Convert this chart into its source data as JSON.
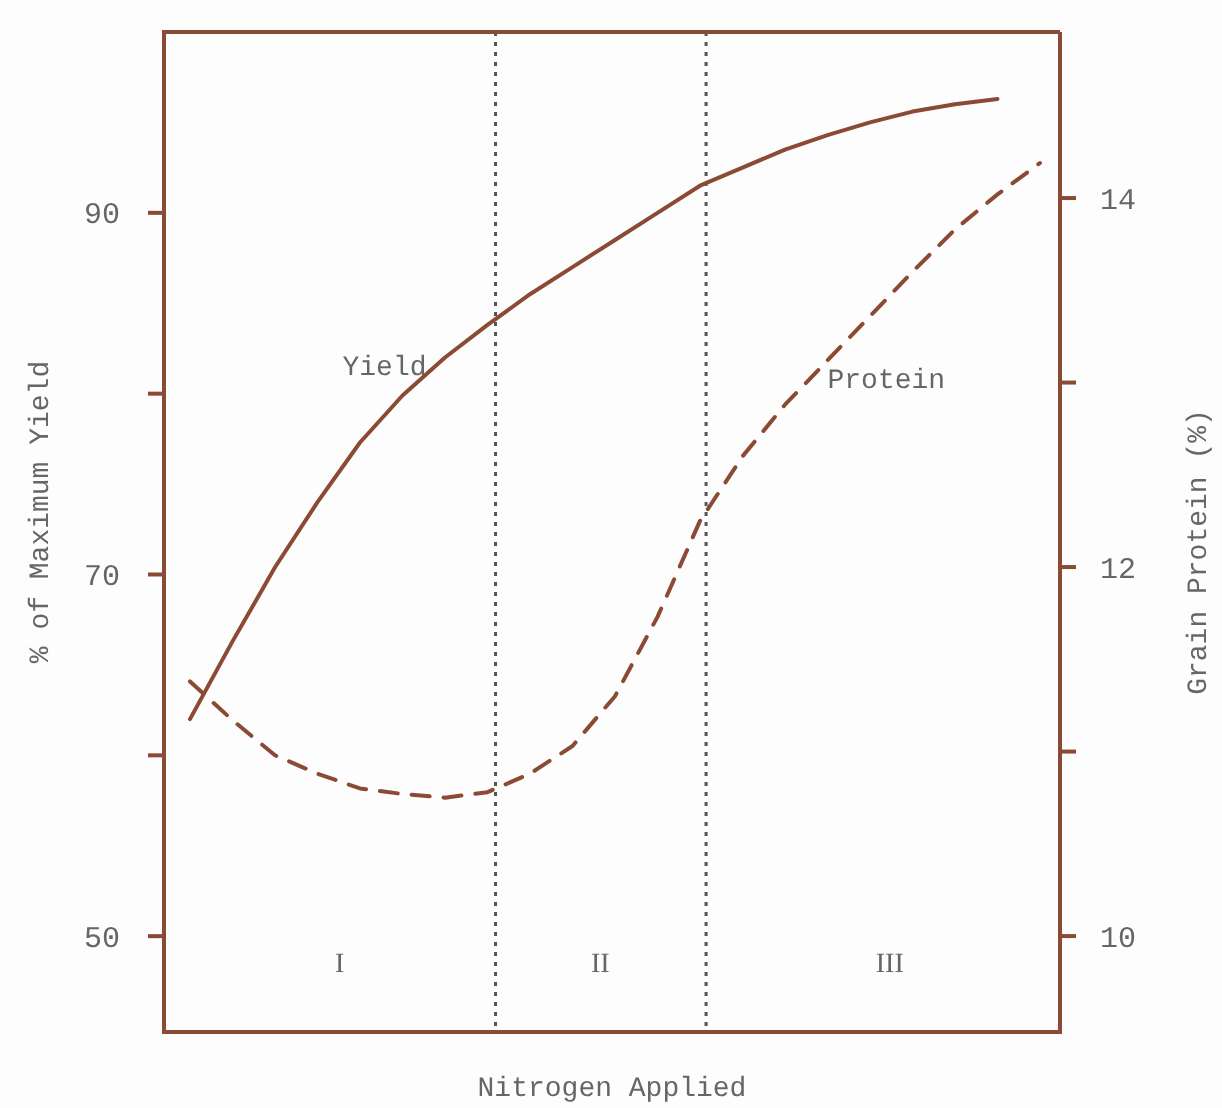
{
  "chart_data": {
    "type": "line",
    "xlabel": "Nitrogen Applied",
    "ylabel": "% of Maximum Yield",
    "y2label": "Grain Protein (%)",
    "categories": [
      null,
      null,
      null,
      null,
      null,
      null,
      null,
      null,
      null,
      null,
      null,
      null,
      null,
      null,
      null,
      null,
      null,
      null,
      null,
      null,
      null
    ],
    "ylim": [
      44.7,
      100
    ],
    "yticks": [
      50,
      {
        "value": 60,
        "label": null
      },
      70,
      {
        "value": 80,
        "label": null
      },
      90
    ],
    "y2lim": [
      9.48,
      14.9
    ],
    "y2ticks": [
      10,
      {
        "value": 11,
        "label": null
      },
      12,
      {
        "value": 13,
        "label": null
      },
      14
    ],
    "grid": false,
    "marker": "none",
    "series": [
      {
        "name": "Yield",
        "color": "#8b4a33",
        "line_style": "solid",
        "values": [
          62,
          66.3,
          70.4,
          74,
          77.3,
          79.9,
          82,
          83.8,
          85.5,
          87,
          88.5,
          90,
          91.5,
          92.5,
          93.5,
          94.3,
          95,
          95.6,
          96,
          96.3,
          null
        ]
      },
      {
        "name": "Protein",
        "color": "#8b4a33",
        "line_style": "dashed",
        "axis": "y2",
        "values": [
          11.38,
          11.17,
          10.98,
          10.88,
          10.8,
          10.77,
          10.75,
          10.78,
          10.88,
          11.03,
          11.3,
          11.73,
          12.25,
          12.6,
          12.88,
          13.12,
          13.36,
          13.6,
          13.83,
          14.02,
          14.19
        ]
      }
    ],
    "annotations": [
      "I",
      "II",
      "III"
    ]
  }
}
